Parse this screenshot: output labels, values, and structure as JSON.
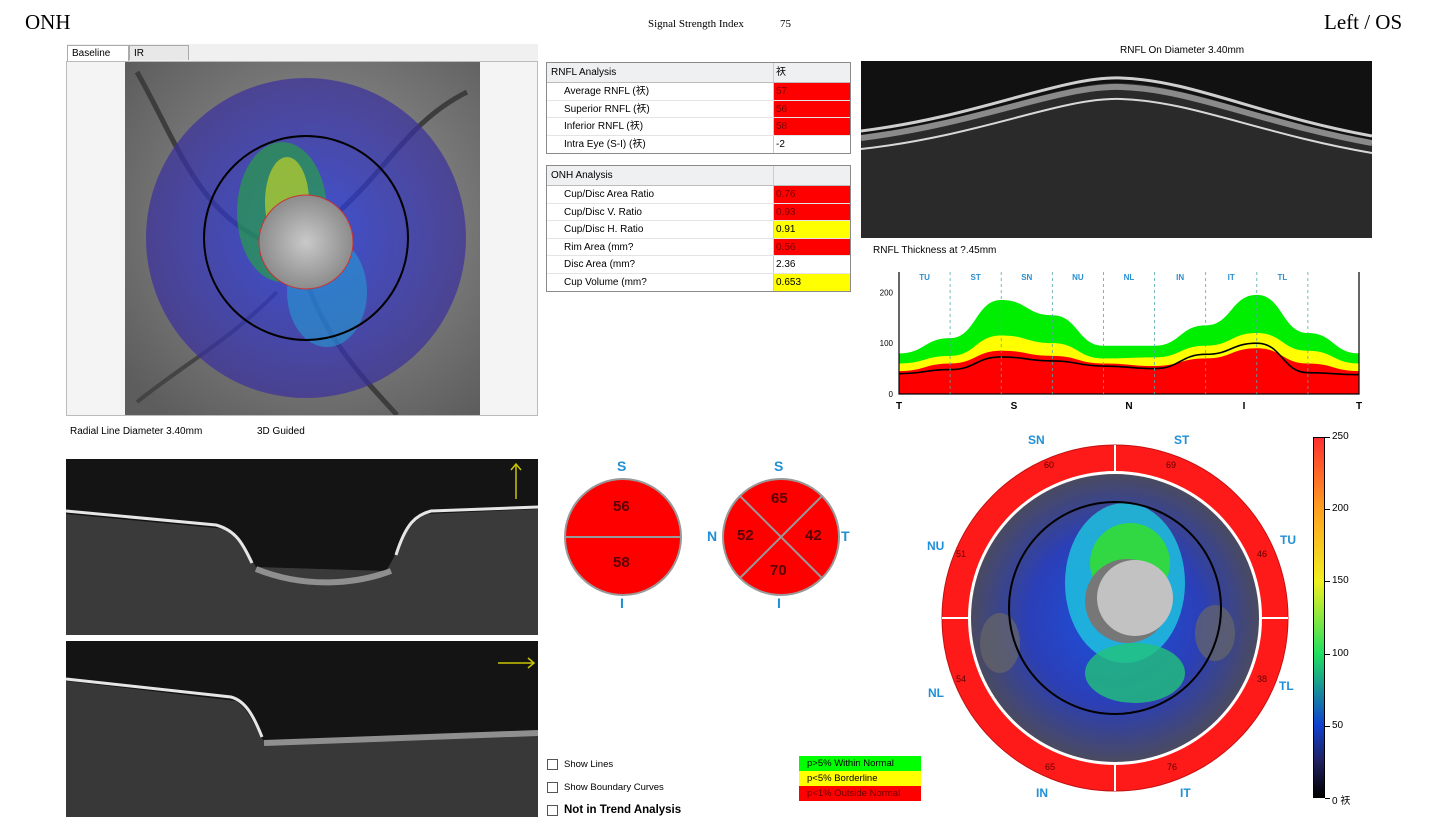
{
  "header": {
    "title": "ONH",
    "signal_label": "Signal Strength Index",
    "signal_value": "75",
    "eye": "Left / OS"
  },
  "tabs": [
    "Baseline",
    "IR"
  ],
  "fundus_labels": {
    "radial_line": "Radial Line Diameter 3.40mm",
    "guided": "3D Guided"
  },
  "rnfl_table": {
    "header": [
      "RNFL Analysis",
      "祆"
    ],
    "rows": [
      {
        "label": "Average RNFL (祆)",
        "value": "57",
        "status": "red"
      },
      {
        "label": "Superior RNFL (祆)",
        "value": "56",
        "status": "red"
      },
      {
        "label": "Inferior RNFL (祆)",
        "value": "58",
        "status": "red"
      },
      {
        "label": "Intra Eye (S-I) (祆)",
        "value": "-2",
        "status": "none"
      }
    ]
  },
  "onh_table": {
    "header": [
      "ONH Analysis",
      ""
    ],
    "rows": [
      {
        "label": "Cup/Disc Area Ratio",
        "value": "0.76",
        "status": "red"
      },
      {
        "label": "Cup/Disc V. Ratio",
        "value": "0.93",
        "status": "red"
      },
      {
        "label": "Cup/Disc H. Ratio",
        "value": "0.91",
        "status": "yellow"
      },
      {
        "label": "Rim Area (mm?",
        "value": "0.56",
        "status": "red"
      },
      {
        "label": "Disc Area (mm?",
        "value": "2.36",
        "status": "none"
      },
      {
        "label": "Cup Volume (mm?",
        "value": "0.653",
        "status": "yellow"
      }
    ]
  },
  "rnfl_scan_title": "RNFL On Diameter 3.40mm",
  "thickness_chart": {
    "title": "RNFL Thickness at ?.45mm",
    "sector_labels": [
      "TU",
      "ST",
      "SN",
      "NU",
      "NL",
      "IN",
      "IT",
      "TL"
    ],
    "x_labels": [
      "T",
      "S",
      "N",
      "I",
      "T"
    ],
    "y_ticks": [
      "200",
      "100",
      "0"
    ]
  },
  "chart_data": {
    "type": "area",
    "title": "RNFL Thickness at ?.45mm",
    "xlabel": "",
    "ylabel": "",
    "x": [
      "T",
      "TU",
      "ST",
      "SN",
      "NU",
      "NL",
      "IN",
      "IT",
      "TL",
      "T"
    ],
    "ylim": [
      0,
      240
    ],
    "series": [
      {
        "values": [
          80,
          110,
          185,
          155,
          95,
          95,
          135,
          195,
          120,
          80
        ]
      },
      {
        "values": [
          60,
          75,
          115,
          100,
          70,
          72,
          95,
          120,
          85,
          60
        ]
      },
      {
        "values": [
          45,
          60,
          85,
          75,
          60,
          55,
          70,
          90,
          60,
          45
        ]
      },
      {
        "values": [
          40,
          48,
          73,
          65,
          55,
          50,
          78,
          100,
          42,
          38
        ]
      }
    ]
  },
  "quadrants_2": {
    "top_label": "S",
    "bottom_label": "I",
    "top": "56",
    "bottom": "58"
  },
  "quadrants_4": {
    "top_label": "S",
    "bottom_label": "I",
    "left_label": "N",
    "right_label": "T",
    "top": "65",
    "left": "52",
    "right": "42",
    "bottom": "70"
  },
  "clock": {
    "labels": {
      "SN": "SN",
      "ST": "ST",
      "NU": "NU",
      "TU": "TU",
      "NL": "NL",
      "TL": "TL",
      "IN": "IN",
      "IT": "IT"
    },
    "values": {
      "SN": "60",
      "ST": "69",
      "NU": "51",
      "TU": "46",
      "NL": "54",
      "TL": "38",
      "IN": "65",
      "IT": "76"
    }
  },
  "colorbar": {
    "ticks": [
      "250",
      "200",
      "150",
      "100",
      "50",
      "0 祆"
    ],
    "tick_values": [
      250,
      200,
      150,
      100,
      50,
      0
    ]
  },
  "checkboxes": [
    "Show Lines",
    "Show Boundary Curves",
    "Not in Trend Analysis"
  ],
  "legend": [
    {
      "label": "p>5% Within Normal",
      "color": "#00ff00"
    },
    {
      "label": "p<5% Borderline",
      "color": "#ffff00"
    },
    {
      "label": "p<1% Outside Normal",
      "color": "#ff0000"
    }
  ]
}
